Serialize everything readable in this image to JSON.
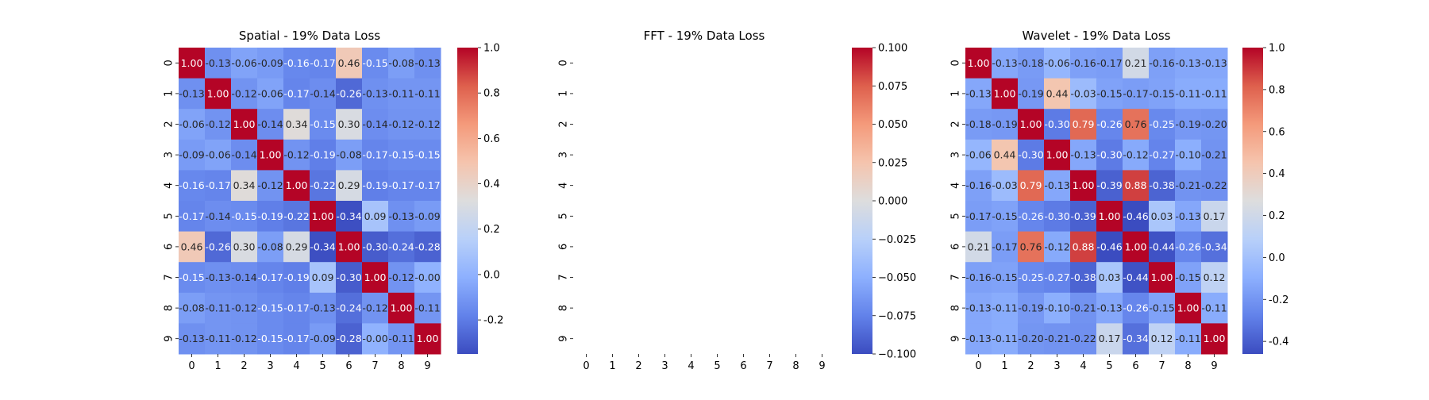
{
  "chart_data": [
    {
      "type": "heatmap",
      "title": "Spatial - 19% Data Loss",
      "x_categories": [
        "0",
        "1",
        "2",
        "3",
        "4",
        "5",
        "6",
        "7",
        "8",
        "9"
      ],
      "y_categories": [
        "0",
        "1",
        "2",
        "3",
        "4",
        "5",
        "6",
        "7",
        "8",
        "9"
      ],
      "colormap": "coolwarm",
      "colorbar_range": [
        -0.35,
        1.0
      ],
      "colorbar_ticks": [
        "-0.2",
        "0.0",
        "0.2",
        "0.4",
        "0.6",
        "0.8",
        "1.0"
      ],
      "colorbar_tick_values": [
        -0.2,
        0.0,
        0.2,
        0.4,
        0.6,
        0.8,
        1.0
      ],
      "values": [
        [
          1.0,
          -0.13,
          -0.06,
          -0.09,
          -0.16,
          -0.17,
          0.46,
          -0.15,
          -0.08,
          -0.13
        ],
        [
          -0.13,
          1.0,
          -0.12,
          -0.06,
          -0.17,
          -0.14,
          -0.26,
          -0.13,
          -0.11,
          -0.11
        ],
        [
          -0.06,
          -0.12,
          1.0,
          -0.14,
          0.34,
          -0.15,
          0.3,
          -0.14,
          -0.12,
          -0.12
        ],
        [
          -0.09,
          -0.06,
          -0.14,
          1.0,
          -0.12,
          -0.19,
          -0.08,
          -0.17,
          -0.15,
          -0.15
        ],
        [
          -0.16,
          -0.17,
          0.34,
          -0.12,
          1.0,
          -0.22,
          0.29,
          -0.19,
          -0.17,
          -0.17
        ],
        [
          -0.17,
          -0.14,
          -0.15,
          -0.19,
          -0.22,
          1.0,
          -0.34,
          0.09,
          -0.13,
          -0.09
        ],
        [
          0.46,
          -0.26,
          0.3,
          -0.08,
          0.29,
          -0.34,
          1.0,
          -0.3,
          -0.24,
          -0.28
        ],
        [
          -0.15,
          -0.13,
          -0.14,
          -0.17,
          -0.19,
          0.09,
          -0.3,
          1.0,
          -0.12,
          -0.0
        ],
        [
          -0.08,
          -0.11,
          -0.12,
          -0.15,
          -0.17,
          -0.13,
          -0.24,
          -0.12,
          1.0,
          -0.11
        ],
        [
          -0.13,
          -0.11,
          -0.12,
          -0.15,
          -0.17,
          -0.09,
          -0.28,
          -0.0,
          -0.11,
          1.0
        ]
      ],
      "labels": [
        [
          "1.00",
          "-0.13",
          "-0.06",
          "-0.09",
          "-0.16",
          "-0.17",
          "0.46",
          "-0.15",
          "-0.08",
          "-0.13"
        ],
        [
          "-0.13",
          "1.00",
          "-0.12",
          "-0.06",
          "-0.17",
          "-0.14",
          "-0.26",
          "-0.13",
          "-0.11",
          "-0.11"
        ],
        [
          "-0.06",
          "-0.12",
          "1.00",
          "-0.14",
          "0.34",
          "-0.15",
          "0.30",
          "-0.14",
          "-0.12",
          "-0.12"
        ],
        [
          "-0.09",
          "-0.06",
          "-0.14",
          "1.00",
          "-0.12",
          "-0.19",
          "-0.08",
          "-0.17",
          "-0.15",
          "-0.15"
        ],
        [
          "-0.16",
          "-0.17",
          "0.34",
          "-0.12",
          "1.00",
          "-0.22",
          "0.29",
          "-0.19",
          "-0.17",
          "-0.17"
        ],
        [
          "-0.17",
          "-0.14",
          "-0.15",
          "-0.19",
          "-0.22",
          "1.00",
          "-0.34",
          "0.09",
          "-0.13",
          "-0.09"
        ],
        [
          "0.46",
          "-0.26",
          "0.30",
          "-0.08",
          "0.29",
          "-0.34",
          "1.00",
          "-0.30",
          "-0.24",
          "-0.28"
        ],
        [
          "-0.15",
          "-0.13",
          "-0.14",
          "-0.17",
          "-0.19",
          "0.09",
          "-0.30",
          "1.00",
          "-0.12",
          "-0.00"
        ],
        [
          "-0.08",
          "-0.11",
          "-0.12",
          "-0.15",
          "-0.17",
          "-0.13",
          "-0.24",
          "-0.12",
          "1.00",
          "-0.11"
        ],
        [
          "-0.13",
          "-0.11",
          "-0.12",
          "-0.15",
          "-0.17",
          "-0.09",
          "-0.28",
          "-0.00",
          "-0.11",
          "1.00"
        ]
      ]
    },
    {
      "type": "heatmap",
      "title": "FFT - 19% Data Loss",
      "x_categories": [
        "0",
        "1",
        "2",
        "3",
        "4",
        "5",
        "6",
        "7",
        "8",
        "9"
      ],
      "y_categories": [
        "0",
        "1",
        "2",
        "3",
        "4",
        "5",
        "6",
        "7",
        "8",
        "9"
      ],
      "colormap": "coolwarm",
      "colorbar_range": [
        -0.1,
        0.1
      ],
      "colorbar_ticks": [
        "−0.100",
        "−0.075",
        "−0.050",
        "−0.025",
        "0.000",
        "0.025",
        "0.050",
        "0.075",
        "0.100"
      ],
      "colorbar_tick_values": [
        -0.1,
        -0.075,
        -0.05,
        -0.025,
        0.0,
        0.025,
        0.05,
        0.075,
        0.1
      ],
      "values": null,
      "labels": null
    },
    {
      "type": "heatmap",
      "title": "Wavelet - 19% Data Loss",
      "x_categories": [
        "0",
        "1",
        "2",
        "3",
        "4",
        "5",
        "6",
        "7",
        "8",
        "9"
      ],
      "y_categories": [
        "0",
        "1",
        "2",
        "3",
        "4",
        "5",
        "6",
        "7",
        "8",
        "9"
      ],
      "colormap": "coolwarm",
      "colorbar_range": [
        -0.46,
        1.0
      ],
      "colorbar_ticks": [
        "-0.4",
        "-0.2",
        "0.0",
        "0.2",
        "0.4",
        "0.6",
        "0.8",
        "1.0"
      ],
      "colorbar_tick_values": [
        -0.4,
        -0.2,
        0.0,
        0.2,
        0.4,
        0.6,
        0.8,
        1.0
      ],
      "values": [
        [
          1.0,
          -0.13,
          -0.18,
          -0.06,
          -0.16,
          -0.17,
          0.21,
          -0.16,
          -0.13,
          -0.13
        ],
        [
          -0.13,
          1.0,
          -0.19,
          0.44,
          -0.03,
          -0.15,
          -0.17,
          -0.15,
          -0.11,
          -0.11
        ],
        [
          -0.18,
          -0.19,
          1.0,
          -0.3,
          0.79,
          -0.26,
          0.76,
          -0.25,
          -0.19,
          -0.2
        ],
        [
          -0.06,
          0.44,
          -0.3,
          1.0,
          -0.13,
          -0.3,
          -0.12,
          -0.27,
          -0.1,
          -0.21
        ],
        [
          -0.16,
          -0.03,
          0.79,
          -0.13,
          1.0,
          -0.39,
          0.88,
          -0.38,
          -0.21,
          -0.22
        ],
        [
          -0.17,
          -0.15,
          -0.26,
          -0.3,
          -0.39,
          1.0,
          -0.46,
          0.03,
          -0.13,
          0.17
        ],
        [
          0.21,
          -0.17,
          0.76,
          -0.12,
          0.88,
          -0.46,
          1.0,
          -0.44,
          -0.26,
          -0.34
        ],
        [
          -0.16,
          -0.15,
          -0.25,
          -0.27,
          -0.38,
          0.03,
          -0.44,
          1.0,
          -0.15,
          0.12
        ],
        [
          -0.13,
          -0.11,
          -0.19,
          -0.1,
          -0.21,
          -0.13,
          -0.26,
          -0.15,
          1.0,
          -0.11
        ],
        [
          -0.13,
          -0.11,
          -0.2,
          -0.21,
          -0.22,
          0.17,
          -0.34,
          0.12,
          -0.11,
          1.0
        ]
      ],
      "labels": [
        [
          "1.00",
          "-0.13",
          "-0.18",
          "-0.06",
          "-0.16",
          "-0.17",
          "0.21",
          "-0.16",
          "-0.13",
          "-0.13"
        ],
        [
          "-0.13",
          "1.00",
          "-0.19",
          "0.44",
          "-0.03",
          "-0.15",
          "-0.17",
          "-0.15",
          "-0.11",
          "-0.11"
        ],
        [
          "-0.18",
          "-0.19",
          "1.00",
          "-0.30",
          "0.79",
          "-0.26",
          "0.76",
          "-0.25",
          "-0.19",
          "-0.20"
        ],
        [
          "-0.06",
          "0.44",
          "-0.30",
          "1.00",
          "-0.13",
          "-0.30",
          "-0.12",
          "-0.27",
          "-0.10",
          "-0.21"
        ],
        [
          "-0.16",
          "-0.03",
          "0.79",
          "-0.13",
          "1.00",
          "-0.39",
          "0.88",
          "-0.38",
          "-0.21",
          "-0.22"
        ],
        [
          "-0.17",
          "-0.15",
          "-0.26",
          "-0.30",
          "-0.39",
          "1.00",
          "-0.46",
          "0.03",
          "-0.13",
          "0.17"
        ],
        [
          "0.21",
          "-0.17",
          "0.76",
          "-0.12",
          "0.88",
          "-0.46",
          "1.00",
          "-0.44",
          "-0.26",
          "-0.34"
        ],
        [
          "-0.16",
          "-0.15",
          "-0.25",
          "-0.27",
          "-0.38",
          "0.03",
          "-0.44",
          "1.00",
          "-0.15",
          "0.12"
        ],
        [
          "-0.13",
          "-0.11",
          "-0.19",
          "-0.10",
          "-0.21",
          "-0.13",
          "-0.26",
          "-0.15",
          "1.00",
          "-0.11"
        ],
        [
          "-0.13",
          "-0.11",
          "-0.20",
          "-0.21",
          "-0.22",
          "0.17",
          "-0.34",
          "0.12",
          "-0.11",
          "1.00"
        ]
      ]
    }
  ]
}
